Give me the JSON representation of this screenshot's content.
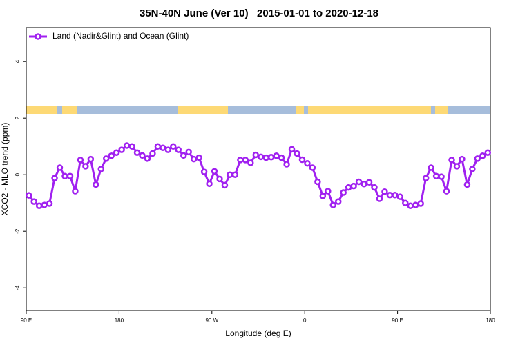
{
  "chart_data": {
    "type": "line",
    "title": "35N-40N June (Ver 10)   2015-01-01 to 2020-12-18",
    "xlabel": "Longitude (deg E)",
    "ylabel": "XCO2 - MLO trend (ppm)",
    "x": [
      92.5,
      97.5,
      102.5,
      107.5,
      112.5,
      117.5,
      122.5,
      127.5,
      132.5,
      137.5,
      142.5,
      147.5,
      152.5,
      157.5,
      162.5,
      167.5,
      172.5,
      177.5,
      182.5,
      187.5,
      192.5,
      197.5,
      202.5,
      207.5,
      212.5,
      217.5,
      222.5,
      227.5,
      232.5,
      237.5,
      242.5,
      247.5,
      252.5,
      257.5,
      262.5,
      267.5,
      272.5,
      277.5,
      282.5,
      287.5,
      292.5,
      297.5,
      302.5,
      307.5,
      312.5,
      317.5,
      322.5,
      327.5,
      332.5,
      337.5,
      342.5,
      347.5,
      352.5,
      357.5,
      362.5,
      367.5,
      372.5,
      377.5,
      382.5,
      387.5,
      392.5,
      397.5,
      402.5,
      407.5,
      412.5,
      417.5,
      422.5,
      427.5,
      432.5,
      437.5,
      442.5,
      447.5,
      452.5,
      457.5,
      462.5,
      467.5,
      472.5,
      477.5,
      482.5,
      487.5,
      492.5,
      497.5,
      502.5,
      507.5,
      512.5,
      517.5,
      522.5,
      527.5,
      532.5,
      537.5
    ],
    "series": [
      {
        "name": "Land (Nadir&Glint) and Ocean (Glint)",
        "color": "#a020f0",
        "values": [
          -0.73,
          -0.95,
          -1.1,
          -1.07,
          -1.02,
          -0.12,
          0.25,
          -0.05,
          -0.05,
          -0.58,
          0.52,
          0.3,
          0.55,
          -0.35,
          0.2,
          0.57,
          0.67,
          0.78,
          0.88,
          1.03,
          1.0,
          0.78,
          0.68,
          0.57,
          0.75,
          1.0,
          0.95,
          0.88,
          1.0,
          0.88,
          0.68,
          0.8,
          0.55,
          0.6,
          0.1,
          -0.32,
          0.12,
          -0.15,
          -0.37,
          0.0,
          0.0,
          0.52,
          0.52,
          0.42,
          0.7,
          0.63,
          0.6,
          0.62,
          0.67,
          0.6,
          0.37,
          0.9,
          0.75,
          0.53,
          0.4,
          0.25,
          -0.25,
          -0.75,
          -0.58,
          -1.07,
          -0.95,
          -0.63,
          -0.45,
          -0.4,
          -0.25,
          -0.33,
          -0.27,
          -0.45,
          -0.85,
          -0.6,
          -0.72,
          -0.72,
          -0.78,
          -1.0,
          -1.1,
          -1.07,
          -1.02,
          -0.12,
          0.25,
          -0.05,
          -0.07,
          -0.58,
          0.52,
          0.3,
          0.55,
          -0.35,
          0.2,
          0.57,
          0.67,
          0.78
        ]
      }
    ],
    "xlim": [
      90,
      540
    ],
    "xticks": [
      {
        "value": 90,
        "label": "90 E"
      },
      180,
      {
        "value": 270,
        "label": "90 W"
      },
      {
        "value": 360,
        "label": "0"
      },
      {
        "value": 450,
        "label": "90 E"
      },
      {
        "value": 540,
        "label": "180"
      }
    ],
    "ylim": [
      -4.8,
      5.2
    ],
    "yticks": [
      -4,
      -2,
      0,
      2,
      4
    ],
    "legend": "top-left"
  }
}
